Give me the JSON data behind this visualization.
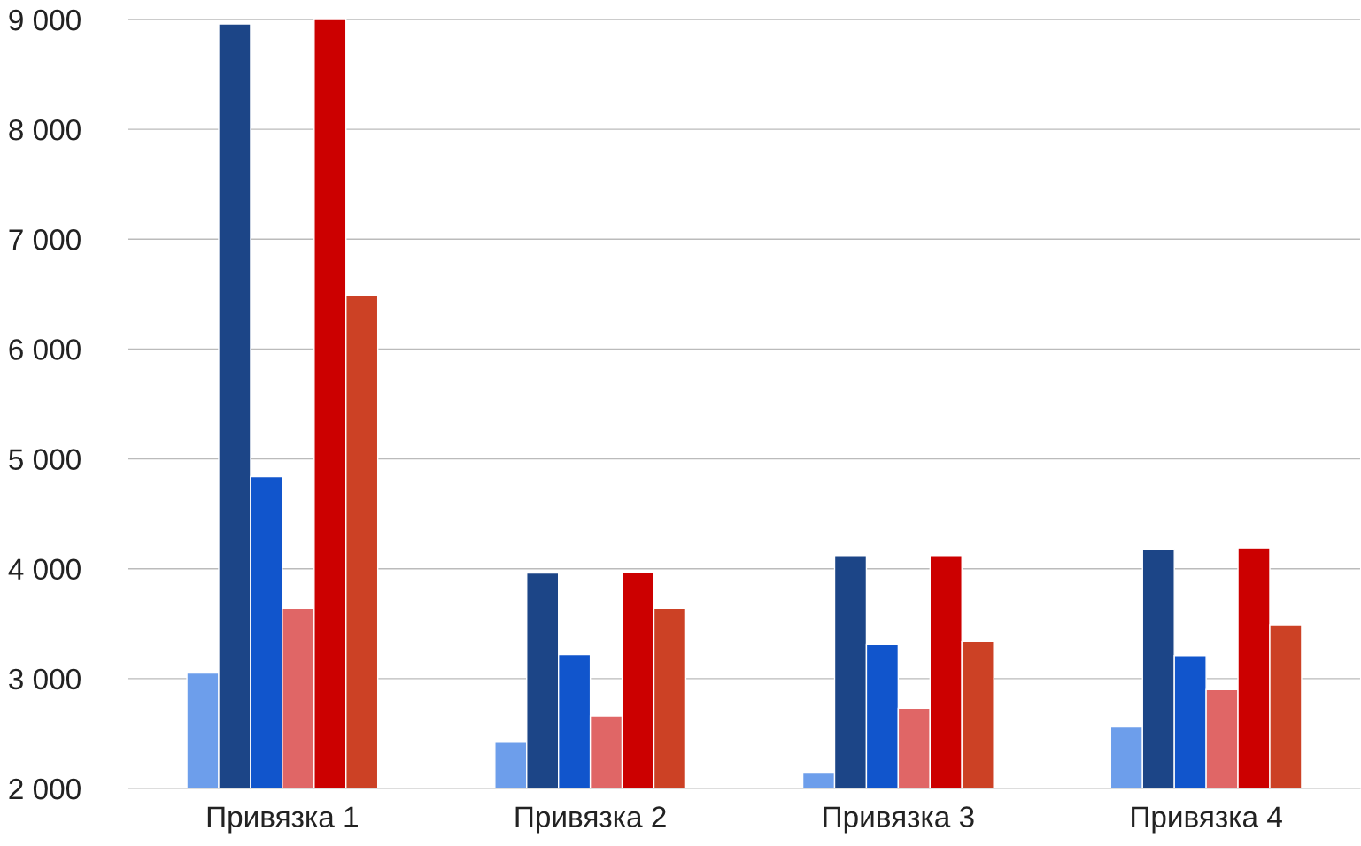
{
  "chart_data": {
    "type": "bar",
    "categories": [
      "Привязка 1",
      "Привязка 2",
      "Привязка 3",
      "Привязка 4"
    ],
    "series": [
      {
        "color": "#6d9eeb",
        "values": [
          3050,
          2420,
          2140,
          2560
        ]
      },
      {
        "color": "#1c4587",
        "values": [
          8960,
          3960,
          4120,
          4180
        ]
      },
      {
        "color": "#1155cc",
        "values": [
          4840,
          3220,
          3310,
          3210
        ]
      },
      {
        "color": "#e06666",
        "values": [
          3640,
          2660,
          2730,
          2900
        ]
      },
      {
        "color": "#cc0000",
        "values": [
          9000,
          3970,
          4120,
          4190
        ]
      },
      {
        "color": "#cc4125",
        "values": [
          6490,
          3640,
          3340,
          3490
        ]
      }
    ],
    "ylim": [
      2000,
      9000
    ],
    "yticks": [
      {
        "value": 2000,
        "label": "2 000"
      },
      {
        "value": 3000,
        "label": "3 000"
      },
      {
        "value": 4000,
        "label": "4 000"
      },
      {
        "value": 5000,
        "label": "5 000"
      },
      {
        "value": 6000,
        "label": "6 000"
      },
      {
        "value": 7000,
        "label": "7 000"
      },
      {
        "value": 8000,
        "label": "8 000"
      },
      {
        "value": 9000,
        "label": "9 000"
      }
    ],
    "grid": "y",
    "legend": false
  }
}
